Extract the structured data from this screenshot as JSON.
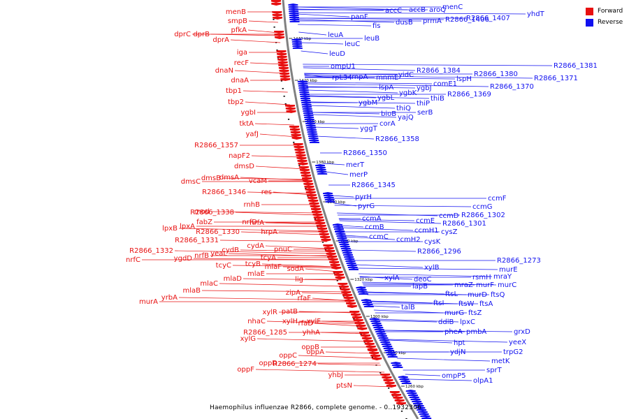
{
  "title": "Haemophilus influenzae R2866, complete genome. - 0..1932306",
  "legend": [
    {
      "label": "Forward",
      "color": "#e81010"
    },
    {
      "label": "Reverse",
      "color": "#1010f0"
    }
  ],
  "colors": {
    "forward": "#e81010",
    "reverse": "#1010f0",
    "backbone": "#808080"
  },
  "ticks": [
    "1440 kbp",
    "1420 kbp",
    "1400 kbp",
    "1380 kbp",
    "1360 kbp",
    "1340 kbp",
    "1320 kbp",
    "1300 kbp",
    "1280 kbp",
    "1260 kbp"
  ],
  "forward_genes": [
    "menB",
    "smpB",
    "pfkA",
    "dprC",
    "dprB",
    "dprA",
    "iga",
    "recF",
    "dnaN",
    "dnaA",
    "tbp1",
    "tbp2",
    "ygbI",
    "tktA",
    "yafJ",
    "R2866_1357",
    "napF2",
    "dmsD",
    "dmsC",
    "dmsB",
    "dmsA",
    "vcaM",
    "R2866_1346",
    "res",
    "rnhB",
    "mod",
    "R2866_1338",
    "fabZ",
    "nrfD",
    "lpxB",
    "lpxA",
    "nrfA",
    "R2866_1330",
    "hrpA",
    "R2866_1331",
    "R2866_1332",
    "nrfB",
    "cydB",
    "cydA",
    "nrfC",
    "ygdD",
    "yeaL",
    "pnuC",
    "tcyC",
    "tcyB",
    "tcyA",
    "mlaF",
    "sodA",
    "mlaE",
    "mlaD",
    "mlaC",
    "lig",
    "mlaB",
    "yrbA",
    "murA",
    "zipA",
    "rfaF",
    "xylR",
    "patB",
    "nhaC",
    "xylH",
    "xylF",
    "rfaD",
    "R2866_1285",
    "yhhA",
    "xylG",
    "oppB",
    "oppA",
    "oppC",
    "oppD",
    "R2866_1274",
    "oppF",
    "yhbJ",
    "ptsN"
  ],
  "reverse_genes": [
    "menC",
    "accC",
    "accB",
    "aroQ",
    "yhdT",
    "panF",
    "R2866_1407",
    "fis",
    "dusB",
    "prmA",
    "R2866_1406",
    "leuA",
    "leuB",
    "leuC",
    "leuD",
    "ompU1",
    "R2866_1381",
    "R2866_1384",
    "R2866_1380",
    "yidC",
    "R2866_1371",
    "mnmE",
    "lspH",
    "rpL34",
    "rnpA",
    "comE1",
    "R2866_1370",
    "lspA",
    "ygbJ",
    "ygbK",
    "R2866_1369",
    "ygbL",
    "thiB",
    "ygbM",
    "thiP",
    "thiQ",
    "serB",
    "bioB",
    "yajQ",
    "corA",
    "yggT",
    "R2866_1358",
    "R2866_1350",
    "merT",
    "merP",
    "R2866_1345",
    "pyrH",
    "pyrG",
    "ccmF",
    "ccmG",
    "ccmD",
    "R2866_1302",
    "ccmE",
    "R2866_1301",
    "ccmA",
    "ccmB",
    "ccmH1",
    "cysZ",
    "ccmC",
    "ccmH2",
    "cysK",
    "R2866_1296",
    "xylB",
    "R2866_1273",
    "murE",
    "mraY",
    "rsmH",
    "xylA",
    "deoC",
    "mraZ",
    "murF",
    "murC",
    "lapB",
    "ftsL",
    "murD",
    "ftsQ",
    "ftsI",
    "ftsW",
    "ftsA",
    "talB",
    "murG",
    "ftsZ",
    "ddlB",
    "lpxC",
    "pheA",
    "pmbA",
    "hpt",
    "ydjN",
    "grxD",
    "yeeX",
    "trpG2",
    "ompP5",
    "metK",
    "sprT",
    "olpA1"
  ]
}
